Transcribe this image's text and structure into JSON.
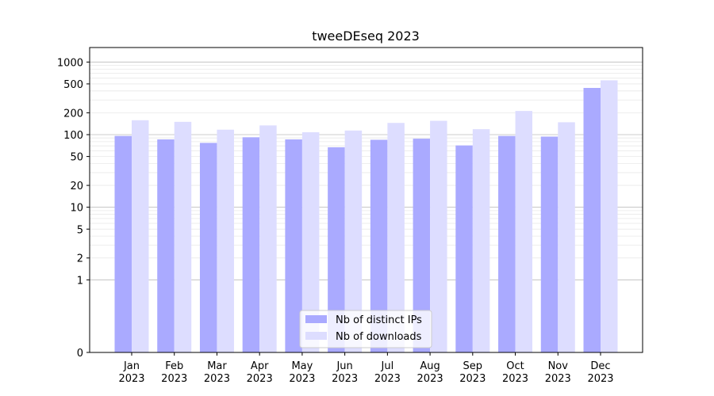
{
  "chart_data": {
    "type": "bar",
    "title": "tweeDEseq 2023",
    "xlabel": "",
    "ylabel": "",
    "y_scale": "symlog",
    "ylim": [
      0,
      1000
    ],
    "y_ticks": [
      0,
      1,
      2,
      5,
      10,
      20,
      50,
      100,
      200,
      500,
      1000
    ],
    "grid": "horizontal, major and minor",
    "legend_position": "lower-center",
    "categories": [
      [
        "Jan",
        "2023"
      ],
      [
        "Feb",
        "2023"
      ],
      [
        "Mar",
        "2023"
      ],
      [
        "Apr",
        "2023"
      ],
      [
        "May",
        "2023"
      ],
      [
        "Jun",
        "2023"
      ],
      [
        "Jul",
        "2023"
      ],
      [
        "Aug",
        "2023"
      ],
      [
        "Sep",
        "2023"
      ],
      [
        "Oct",
        "2023"
      ],
      [
        "Nov",
        "2023"
      ],
      [
        "Dec",
        "2023"
      ]
    ],
    "series": [
      {
        "name": "Nb of distinct IPs",
        "color": "#aaaaff",
        "values": [
          96,
          86,
          77,
          92,
          86,
          67,
          85,
          88,
          71,
          96,
          94,
          440
        ]
      },
      {
        "name": "Nb of downloads",
        "color": "#ddddff",
        "values": [
          158,
          150,
          117,
          134,
          108,
          114,
          145,
          155,
          119,
          212,
          148,
          560
        ]
      }
    ]
  }
}
